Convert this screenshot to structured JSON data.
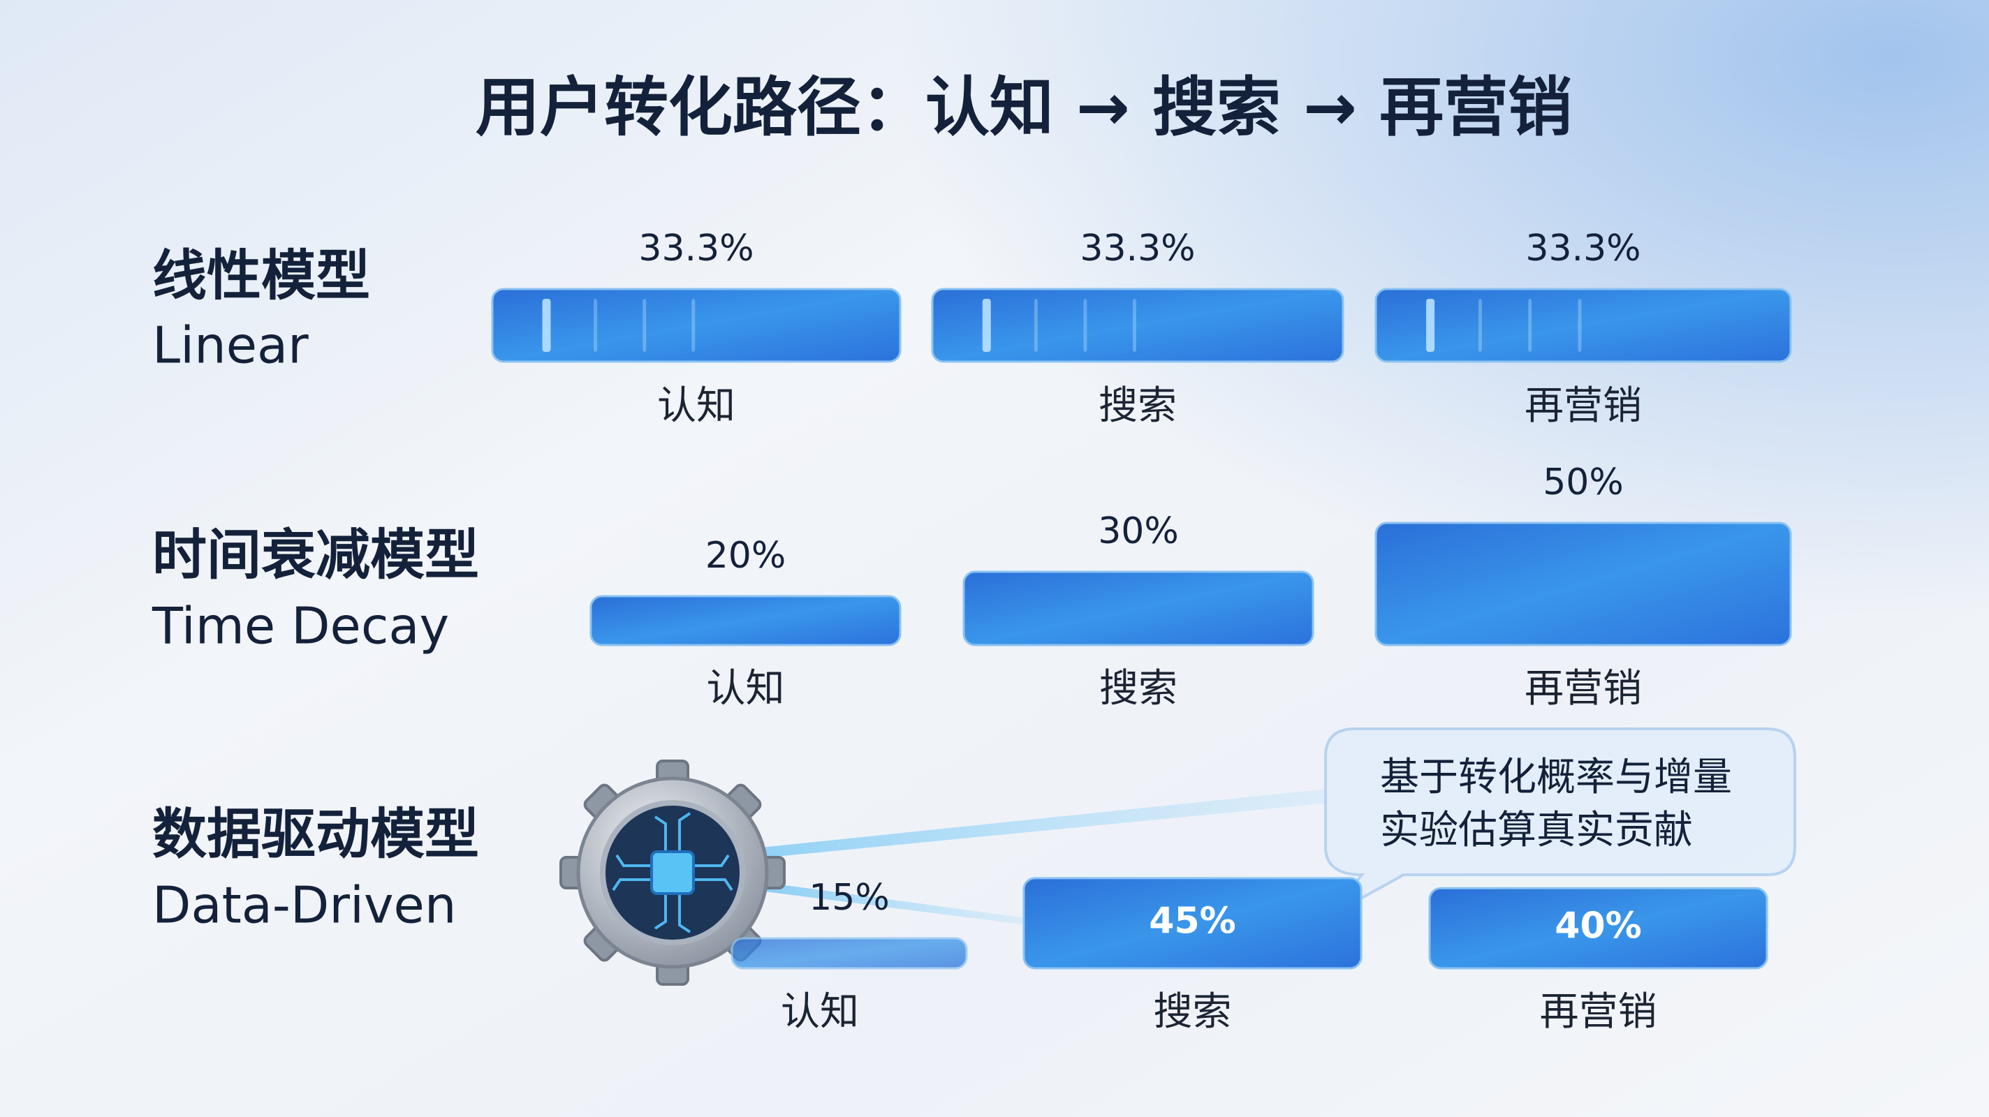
{
  "title": "用户转化路径：认知 → 搜索 → 再营销",
  "chart_data": [
    {
      "type": "bar",
      "title": "线性模型",
      "subtitle": "Linear",
      "categories": [
        "认知",
        "搜索",
        "再营销"
      ],
      "values": [
        33.3,
        33.3,
        33.3
      ],
      "value_labels": [
        "33.3%",
        "33.3%",
        "33.3%"
      ],
      "color": "#2f86e0"
    },
    {
      "type": "bar",
      "title": "时间衰减模型",
      "subtitle": "Time Decay",
      "categories": [
        "认知",
        "搜索",
        "再营销"
      ],
      "values": [
        20,
        30,
        50
      ],
      "value_labels": [
        "20%",
        "30%",
        "50%"
      ],
      "color": "#2a78dc"
    },
    {
      "type": "bar",
      "title": "数据驱动模型",
      "subtitle": "Data-Driven",
      "categories": [
        "认知",
        "搜索",
        "再营销"
      ],
      "values": [
        15,
        45,
        40
      ],
      "value_labels": [
        "15%",
        "45%",
        "40%"
      ],
      "color": "#2a7be0",
      "annotation": [
        "基于转化概率与增量",
        "实验估算真实贡献"
      ]
    }
  ]
}
